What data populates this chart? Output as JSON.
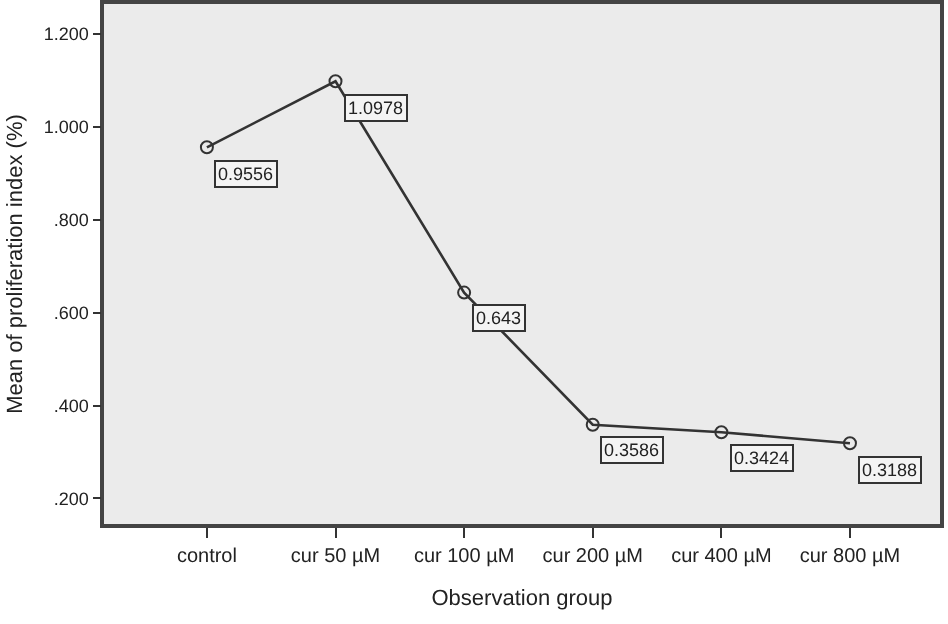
{
  "chart_data": {
    "type": "line",
    "xlabel": "Observation group",
    "ylabel": "Mean of proliferation index (%)",
    "categories": [
      "control",
      "cur 50 µM",
      "cur 100 µM",
      "cur 200 µM",
      "cur 400 µM",
      "cur 800 µM"
    ],
    "series": [
      {
        "color": "#333333",
        "values": [
          0.9556,
          1.0978,
          0.643,
          0.3586,
          0.3424,
          0.3188
        ]
      }
    ],
    "ylim": [
      0.145,
      1.264
    ],
    "yticks": [
      {
        "value": 0.2,
        "label": ".200"
      },
      {
        "value": 0.4,
        "label": ".400"
      },
      {
        "value": 0.6,
        "label": ".600"
      },
      {
        "value": 0.8,
        "label": ".800"
      },
      {
        "value": 1.0,
        "label": "1.000"
      },
      {
        "value": 1.2,
        "label": "1.200"
      }
    ],
    "grid": false,
    "marker": "circle",
    "line_style": "solid",
    "data_labels": true
  }
}
